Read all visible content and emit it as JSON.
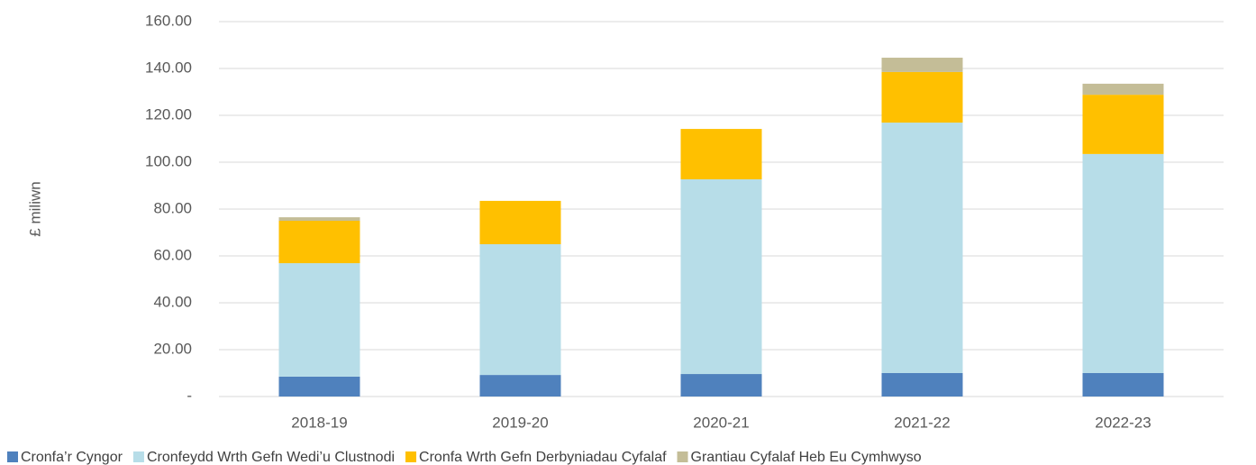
{
  "chart_data": {
    "type": "stacked_bar",
    "y_label": "£ miliwn",
    "categories": [
      "2018-19",
      "2019-20",
      "2020-21",
      "2021-22",
      "2022-23"
    ],
    "series": [
      {
        "name": "Cronfa’r Cyngor",
        "color": "#4f81bd",
        "values": [
          8.5,
          9.2,
          9.6,
          10.0,
          10.0
        ]
      },
      {
        "name": "Cronfeydd Wrth Gefn Wedi’u Clustnodi",
        "color": "#b7dde8",
        "values": [
          48.4,
          55.8,
          83.1,
          106.9,
          93.5
        ]
      },
      {
        "name": "Cronfa Wrth Gefn Derbyniadau Cyfalaf",
        "color": "#ffc000",
        "values": [
          18.1,
          18.5,
          21.5,
          21.6,
          25.3
        ]
      },
      {
        "name": "Grantiau Cyfalaf Heb Eu Cymhwyso",
        "color": "#c4bd97",
        "values": [
          1.5,
          0,
          0,
          6.1,
          4.7
        ]
      }
    ],
    "ylim": [
      0,
      160
    ],
    "yticks": [
      {
        "value": 0,
        "label": "-"
      },
      {
        "value": 20,
        "label": "20.00"
      },
      {
        "value": 40,
        "label": "40.00"
      },
      {
        "value": 60,
        "label": "60.00"
      },
      {
        "value": 80,
        "label": "80.00"
      },
      {
        "value": 100,
        "label": "100.00"
      },
      {
        "value": 120,
        "label": "120.00"
      },
      {
        "value": 140,
        "label": "140.00"
      },
      {
        "value": 160,
        "label": "160.00"
      }
    ],
    "grid": true
  }
}
